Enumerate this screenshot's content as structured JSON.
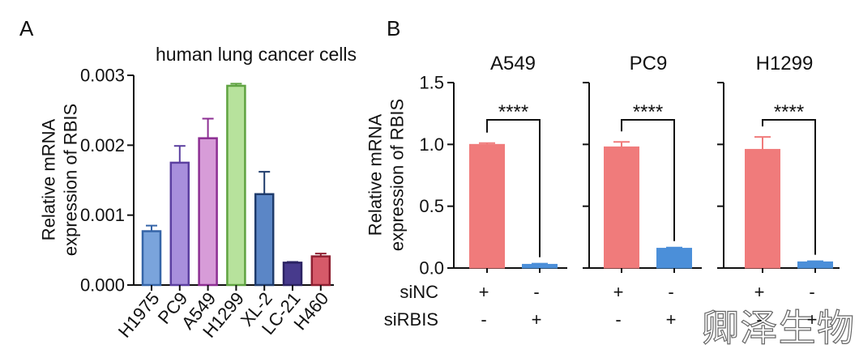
{
  "watermark": "卿泽生物",
  "chart_data": [
    {
      "type": "bar",
      "panel_label": "A",
      "title": "human lung cancer cells",
      "ylabel_lines": [
        "Relative mRNA",
        "expression of RBIS"
      ],
      "categories": [
        "H1975",
        "PC9",
        "A549",
        "H1299",
        "XL-2",
        "LC-21",
        "H460"
      ],
      "values": [
        0.00077,
        0.00175,
        0.0021,
        0.00285,
        0.0013,
        0.00032,
        0.00041
      ],
      "error": [
        8e-05,
        0.00024,
        0.00028,
        3e-05,
        0.00032,
        1e-05,
        4e-05
      ],
      "ylim": [
        0,
        0.003
      ],
      "yticks": [
        0,
        0.001,
        0.002,
        0.003
      ],
      "ytick_labels": [
        "0.000",
        "0.001",
        "0.002",
        "0.003"
      ],
      "bar_fills": [
        "#7aa4dc",
        "#a88fdc",
        "#d79cd8",
        "#b7e29c",
        "#5b86c6",
        "#473a8c",
        "#d65a69"
      ],
      "bar_strokes": [
        "#3565a8",
        "#5b3fa0",
        "#8d2f93",
        "#5fa341",
        "#1e3b6b",
        "#2b2262",
        "#8f1f31"
      ]
    },
    {
      "type": "bar",
      "panel_label": "B",
      "ylabel_lines": [
        "Relative mRNA",
        "expression of RBIS"
      ],
      "ylim": [
        0,
        1.5
      ],
      "yticks": [
        0,
        0.5,
        1.0,
        1.5
      ],
      "ytick_labels": [
        "0.0",
        "0.5",
        "1.0",
        "1.5"
      ],
      "treatment_rows": [
        {
          "label": "siNC",
          "signs": [
            "+",
            "-"
          ]
        },
        {
          "label": "siRBIS",
          "signs": [
            "-",
            "+"
          ]
        }
      ],
      "series_colors": [
        "#f07b7b",
        "#4b8fd9"
      ],
      "subplots": [
        {
          "title": "A549",
          "values": [
            1.0,
            0.03
          ],
          "error": [
            0.01,
            0.005
          ],
          "significance": "****"
        },
        {
          "title": "PC9",
          "values": [
            0.98,
            0.16
          ],
          "error": [
            0.04,
            0.005
          ],
          "significance": "****"
        },
        {
          "title": "H1299",
          "values": [
            0.96,
            0.05
          ],
          "error": [
            0.1,
            0.005
          ],
          "significance": "****"
        }
      ]
    }
  ]
}
